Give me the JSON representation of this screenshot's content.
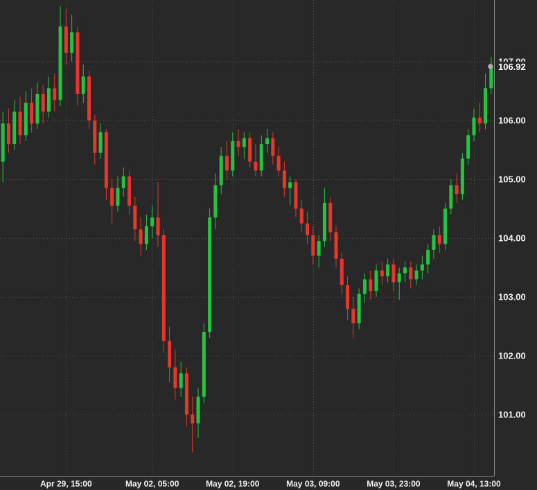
{
  "chart_data": {
    "type": "candlestick",
    "title": "",
    "xlabel": "",
    "ylabel": "",
    "grid": true,
    "legend": false,
    "ylim": [
      99.95,
      108.05
    ],
    "y_ticks": [
      {
        "value": 107,
        "label": "107.00"
      },
      {
        "value": 106,
        "label": "106.00"
      },
      {
        "value": 105,
        "label": "105.00"
      },
      {
        "value": 104,
        "label": "104.00"
      },
      {
        "value": 103,
        "label": "103.00"
      },
      {
        "value": 102,
        "label": "102.00"
      },
      {
        "value": 101,
        "label": "101.00"
      }
    ],
    "x_ticks": [
      {
        "index": 11,
        "label": "Apr 29, 15:00"
      },
      {
        "index": 26,
        "label": "May 02, 05:00"
      },
      {
        "index": 40,
        "label": "May 02, 19:00"
      },
      {
        "index": 54,
        "label": "May 03, 09:00"
      },
      {
        "index": 68,
        "label": "May 03, 23:00"
      },
      {
        "index": 82,
        "label": "May 04, 13:00"
      }
    ],
    "last_price": {
      "value": 106.92,
      "label": "106.92"
    },
    "colors": {
      "background": "#282828",
      "grid": "#575757",
      "axis_line": "#8f8f8f",
      "text": "#f2f2f2",
      "up": "#25c440",
      "down": "#e8362d",
      "marker": "#b0b0b0"
    },
    "candle_format": "ohlc",
    "candles": [
      [
        105.3,
        106.15,
        104.95,
        105.95
      ],
      [
        105.95,
        106.2,
        105.45,
        105.6
      ],
      [
        105.6,
        106.35,
        105.5,
        106.15
      ],
      [
        106.15,
        106.4,
        105.6,
        105.75
      ],
      [
        105.75,
        106.5,
        105.65,
        106.3
      ],
      [
        106.3,
        106.55,
        105.8,
        105.95
      ],
      [
        105.95,
        106.65,
        105.85,
        106.45
      ],
      [
        106.45,
        106.6,
        105.95,
        106.15
      ],
      [
        106.15,
        106.75,
        106.05,
        106.55
      ],
      [
        106.55,
        106.8,
        106.15,
        106.35
      ],
      [
        106.35,
        107.95,
        106.25,
        107.6
      ],
      [
        107.6,
        107.9,
        106.95,
        107.15
      ],
      [
        107.15,
        107.8,
        107.0,
        107.5
      ],
      [
        107.5,
        107.6,
        106.25,
        106.45
      ],
      [
        106.45,
        106.95,
        106.3,
        106.75
      ],
      [
        106.75,
        106.85,
        105.85,
        106.0
      ],
      [
        106.0,
        106.1,
        105.25,
        105.45
      ],
      [
        105.45,
        105.95,
        105.35,
        105.8
      ],
      [
        105.8,
        105.85,
        104.65,
        104.85
      ],
      [
        104.85,
        105.0,
        104.25,
        104.55
      ],
      [
        104.55,
        105.05,
        104.45,
        104.85
      ],
      [
        104.85,
        105.2,
        104.7,
        105.05
      ],
      [
        105.05,
        105.15,
        104.4,
        104.55
      ],
      [
        104.55,
        104.7,
        103.95,
        104.15
      ],
      [
        104.15,
        104.35,
        103.7,
        103.9
      ],
      [
        103.9,
        104.4,
        103.8,
        104.2
      ],
      [
        104.2,
        104.55,
        104.0,
        104.35
      ],
      [
        104.35,
        104.95,
        103.85,
        104.05
      ],
      [
        104.05,
        104.15,
        102.05,
        102.25
      ],
      [
        102.25,
        102.5,
        101.55,
        101.8
      ],
      [
        101.8,
        102.1,
        101.25,
        101.45
      ],
      [
        101.45,
        101.9,
        101.3,
        101.7
      ],
      [
        101.7,
        101.8,
        100.8,
        101.0
      ],
      [
        101.0,
        101.3,
        100.35,
        100.85
      ],
      [
        100.85,
        101.45,
        100.6,
        101.3
      ],
      [
        101.3,
        102.55,
        101.2,
        102.4
      ],
      [
        102.4,
        104.5,
        102.3,
        104.35
      ],
      [
        104.35,
        105.1,
        104.15,
        104.9
      ],
      [
        104.9,
        105.55,
        104.75,
        105.4
      ],
      [
        105.4,
        105.65,
        105.0,
        105.15
      ],
      [
        105.15,
        105.8,
        105.05,
        105.65
      ],
      [
        105.65,
        105.85,
        105.4,
        105.55
      ],
      [
        105.55,
        105.8,
        105.35,
        105.7
      ],
      [
        105.7,
        105.8,
        105.2,
        105.3
      ],
      [
        105.3,
        105.6,
        105.05,
        105.15
      ],
      [
        105.15,
        105.75,
        105.05,
        105.6
      ],
      [
        105.6,
        105.85,
        105.45,
        105.7
      ],
      [
        105.7,
        105.8,
        105.25,
        105.4
      ],
      [
        105.4,
        105.55,
        105.05,
        105.15
      ],
      [
        105.15,
        105.3,
        104.7,
        104.85
      ],
      [
        104.85,
        105.05,
        104.55,
        104.95
      ],
      [
        104.95,
        105.0,
        104.35,
        104.5
      ],
      [
        104.5,
        104.65,
        104.1,
        104.25
      ],
      [
        104.25,
        104.45,
        103.9,
        104.05
      ],
      [
        104.05,
        104.2,
        103.55,
        103.7
      ],
      [
        103.7,
        104.05,
        103.5,
        103.95
      ],
      [
        103.95,
        104.85,
        103.85,
        104.6
      ],
      [
        104.6,
        104.7,
        103.95,
        104.1
      ],
      [
        104.1,
        104.2,
        103.5,
        103.65
      ],
      [
        103.65,
        103.75,
        103.05,
        103.2
      ],
      [
        103.2,
        103.35,
        102.6,
        102.8
      ],
      [
        102.8,
        103.0,
        102.3,
        102.55
      ],
      [
        102.55,
        103.15,
        102.45,
        103.05
      ],
      [
        103.05,
        103.4,
        102.9,
        103.3
      ],
      [
        103.3,
        103.45,
        102.95,
        103.1
      ],
      [
        103.1,
        103.55,
        103.0,
        103.45
      ],
      [
        103.45,
        103.6,
        103.2,
        103.35
      ],
      [
        103.35,
        103.65,
        103.25,
        103.55
      ],
      [
        103.55,
        103.65,
        103.1,
        103.25
      ],
      [
        103.25,
        103.5,
        102.95,
        103.4
      ],
      [
        103.4,
        103.6,
        103.25,
        103.5
      ],
      [
        103.5,
        103.6,
        103.15,
        103.3
      ],
      [
        103.3,
        103.55,
        103.2,
        103.45
      ],
      [
        103.45,
        103.7,
        103.3,
        103.55
      ],
      [
        103.55,
        103.9,
        103.4,
        103.8
      ],
      [
        103.8,
        104.15,
        103.65,
        104.05
      ],
      [
        104.05,
        104.2,
        103.75,
        103.9
      ],
      [
        103.9,
        104.6,
        103.8,
        104.5
      ],
      [
        104.5,
        105.0,
        104.4,
        104.9
      ],
      [
        104.9,
        105.1,
        104.6,
        104.75
      ],
      [
        104.75,
        105.45,
        104.65,
        105.35
      ],
      [
        105.35,
        105.85,
        105.25,
        105.75
      ],
      [
        105.75,
        106.2,
        105.65,
        106.05
      ],
      [
        106.05,
        106.3,
        105.8,
        105.95
      ],
      [
        105.95,
        106.8,
        105.85,
        106.55
      ],
      [
        106.55,
        107.08,
        106.45,
        106.92
      ]
    ]
  }
}
